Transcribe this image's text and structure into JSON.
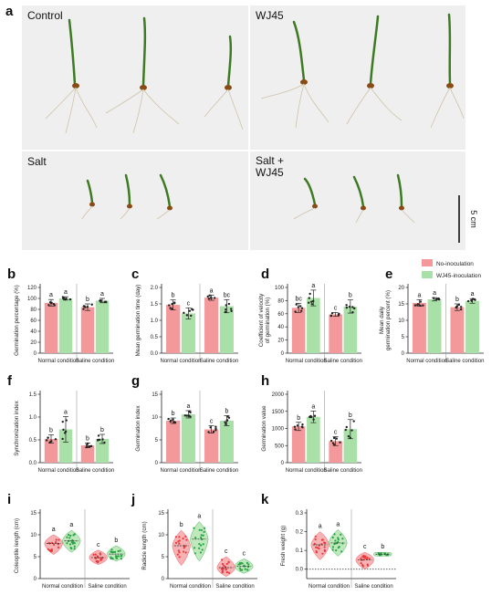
{
  "figure_label": "a",
  "photos": [
    {
      "label": "Control"
    },
    {
      "label": "WJ45"
    },
    {
      "label": "Salt"
    },
    {
      "label": "Salt +\nWJ45"
    }
  ],
  "scale_bar_label": "5 cm",
  "legend": {
    "items": [
      "No-inoculation",
      "WJ45-inoculation"
    ]
  },
  "colors": {
    "no_inoculation": "#f4999b",
    "wj45": "#a9e0a7",
    "no_inoculation_dark": "#e8383f",
    "wj45_dark": "#25a341"
  },
  "conditions": [
    "Normal condition",
    "Saline condition"
  ],
  "chart_data": [
    {
      "panel": "b",
      "type": "bar",
      "ylabel": "Germination percentage (%)",
      "ylim": [
        0,
        120
      ],
      "yticks": [
        0,
        20,
        40,
        60,
        80,
        100,
        120
      ],
      "categories": [
        "Normal condition",
        "Saline condition"
      ],
      "series": [
        {
          "name": "No-inoculation",
          "values": [
            92,
            84
          ],
          "err": [
            6,
            6
          ],
          "letters": [
            "a",
            "b"
          ]
        },
        {
          "name": "WJ45-inoculation",
          "values": [
            100,
            96
          ],
          "err": [
            3,
            4
          ],
          "letters": [
            "a",
            "a"
          ]
        }
      ]
    },
    {
      "panel": "c",
      "type": "bar",
      "ylabel": "Mean germination time (day)",
      "ylim": [
        0.0,
        2.0
      ],
      "yticks": [
        0.0,
        0.5,
        1.0,
        1.5,
        2.0
      ],
      "categories": [
        "Normal condition",
        "Saline condition"
      ],
      "series": [
        {
          "name": "No-inoculation",
          "values": [
            1.47,
            1.69
          ],
          "err": [
            0.15,
            0.08
          ],
          "letters": [
            "b",
            "a"
          ]
        },
        {
          "name": "WJ45-inoculation",
          "values": [
            1.21,
            1.43
          ],
          "err": [
            0.17,
            0.2
          ],
          "letters": [
            "c",
            "bc"
          ]
        }
      ]
    },
    {
      "panel": "d",
      "type": "bar",
      "ylabel": "Coefficient of velocity\nof germination (%)",
      "ylim": [
        0,
        100
      ],
      "yticks": [
        0,
        20,
        40,
        60,
        80,
        100
      ],
      "categories": [
        "Normal condition",
        "Saline condition"
      ],
      "series": [
        {
          "name": "No-inoculation",
          "values": [
            69,
            59
          ],
          "err": [
            7,
            3
          ],
          "letters": [
            "bc",
            "c"
          ]
        },
        {
          "name": "WJ45-inoculation",
          "values": [
            84,
            71
          ],
          "err": [
            12,
            10
          ],
          "letters": [
            "a",
            "b"
          ]
        }
      ]
    },
    {
      "panel": "e",
      "type": "bar",
      "ylabel": "Mean daily\ngermination percent (%)",
      "ylim": [
        0,
        20
      ],
      "yticks": [
        0,
        5,
        10,
        15,
        20
      ],
      "categories": [
        "Normal condition",
        "Saline condition"
      ],
      "series": [
        {
          "name": "No-inoculation",
          "values": [
            15.3,
            14.0
          ],
          "err": [
            1.0,
            1.0
          ],
          "letters": [
            "a",
            "b"
          ]
        },
        {
          "name": "WJ45-inoculation",
          "values": [
            16.4,
            15.9
          ],
          "err": [
            0.5,
            0.7
          ],
          "letters": [
            "a",
            "a"
          ]
        }
      ]
    },
    {
      "panel": "f",
      "type": "bar",
      "ylabel": "Synchronization index",
      "ylim": [
        0.0,
        1.5
      ],
      "yticks": [
        0.0,
        0.5,
        1.0,
        1.5
      ],
      "categories": [
        "Normal condition",
        "Saline condition"
      ],
      "series": [
        {
          "name": "No-inoculation",
          "values": [
            0.52,
            0.38
          ],
          "err": [
            0.09,
            0.05
          ],
          "letters": [
            "b",
            "b"
          ]
        },
        {
          "name": "WJ45-inoculation",
          "values": [
            0.73,
            0.52
          ],
          "err": [
            0.28,
            0.1
          ],
          "letters": [
            "a",
            "b"
          ]
        }
      ]
    },
    {
      "panel": "g",
      "type": "bar",
      "ylabel": "Germination index",
      "ylim": [
        0,
        15
      ],
      "yticks": [
        0,
        5,
        10,
        15
      ],
      "categories": [
        "Normal condition",
        "Saline condition"
      ],
      "series": [
        {
          "name": "No-inoculation",
          "values": [
            9.2,
            7.3
          ],
          "err": [
            0.6,
            0.8
          ],
          "letters": [
            "b",
            "c"
          ]
        },
        {
          "name": "WJ45-inoculation",
          "values": [
            10.6,
            9.2
          ],
          "err": [
            0.8,
            1.1
          ],
          "letters": [
            "a",
            "b"
          ]
        }
      ]
    },
    {
      "panel": "h",
      "type": "bar",
      "ylabel": "Germination value",
      "ylim": [
        0,
        2000
      ],
      "yticks": [
        0,
        500,
        1000,
        1500,
        2000
      ],
      "categories": [
        "Normal condition",
        "Saline condition"
      ],
      "series": [
        {
          "name": "No-inoculation",
          "values": [
            1060,
            630
          ],
          "err": [
            120,
            130
          ],
          "letters": [
            "b",
            "c"
          ]
        },
        {
          "name": "WJ45-inoculation",
          "values": [
            1340,
            980
          ],
          "err": [
            170,
            280
          ],
          "letters": [
            "a",
            "b"
          ]
        }
      ]
    },
    {
      "panel": "i",
      "type": "violin",
      "ylabel": "Coleoptile length (cm)",
      "ylim": [
        0,
        15
      ],
      "yticks": [
        0,
        5,
        10,
        15
      ],
      "categories": [
        "Normal condition",
        "Saline condition"
      ],
      "series": [
        {
          "name": "No-inoculation",
          "median": [
            8.0,
            4.8
          ],
          "range": [
            [
              5.5,
              10.0
            ],
            [
              3.2,
              6.5
            ]
          ],
          "letters": [
            "a",
            "c"
          ]
        },
        {
          "name": "WJ45-inoculation",
          "median": [
            8.6,
            5.6
          ],
          "range": [
            [
              6.0,
              11.0
            ],
            [
              4.0,
              7.5
            ]
          ],
          "letters": [
            "a",
            "b"
          ]
        }
      ]
    },
    {
      "panel": "j",
      "type": "violin",
      "ylabel": "Radicle length (cm)",
      "ylim": [
        0,
        15
      ],
      "yticks": [
        0,
        5,
        10,
        15
      ],
      "categories": [
        "Normal condition",
        "Saline condition"
      ],
      "series": [
        {
          "name": "No-inoculation",
          "median": [
            7.5,
            2.5
          ],
          "range": [
            [
              3.0,
              11.0
            ],
            [
              0.5,
              5.0
            ]
          ],
          "letters": [
            "b",
            "c"
          ]
        },
        {
          "name": "WJ45-inoculation",
          "median": [
            9.0,
            2.8
          ],
          "range": [
            [
              4.0,
              13.0
            ],
            [
              1.2,
              4.5
            ]
          ],
          "letters": [
            "a",
            "c"
          ]
        }
      ]
    },
    {
      "panel": "k",
      "type": "violin",
      "ylabel": "Fresh weight (g)",
      "ylim": [
        -0.05,
        0.3
      ],
      "yticks": [
        0.0,
        0.1,
        0.2,
        0.3
      ],
      "categories": [
        "Normal condition",
        "Saline condition"
      ],
      "series": [
        {
          "name": "No-inoculation",
          "median": [
            0.13,
            0.05
          ],
          "range": [
            [
              0.05,
              0.2
            ],
            [
              0.0,
              0.09
            ]
          ],
          "letters": [
            "a",
            "c"
          ]
        },
        {
          "name": "WJ45-inoculation",
          "median": [
            0.14,
            0.08
          ],
          "range": [
            [
              0.07,
              0.21
            ],
            [
              0.07,
              0.09
            ]
          ],
          "letters": [
            "a",
            "b"
          ]
        }
      ]
    }
  ]
}
